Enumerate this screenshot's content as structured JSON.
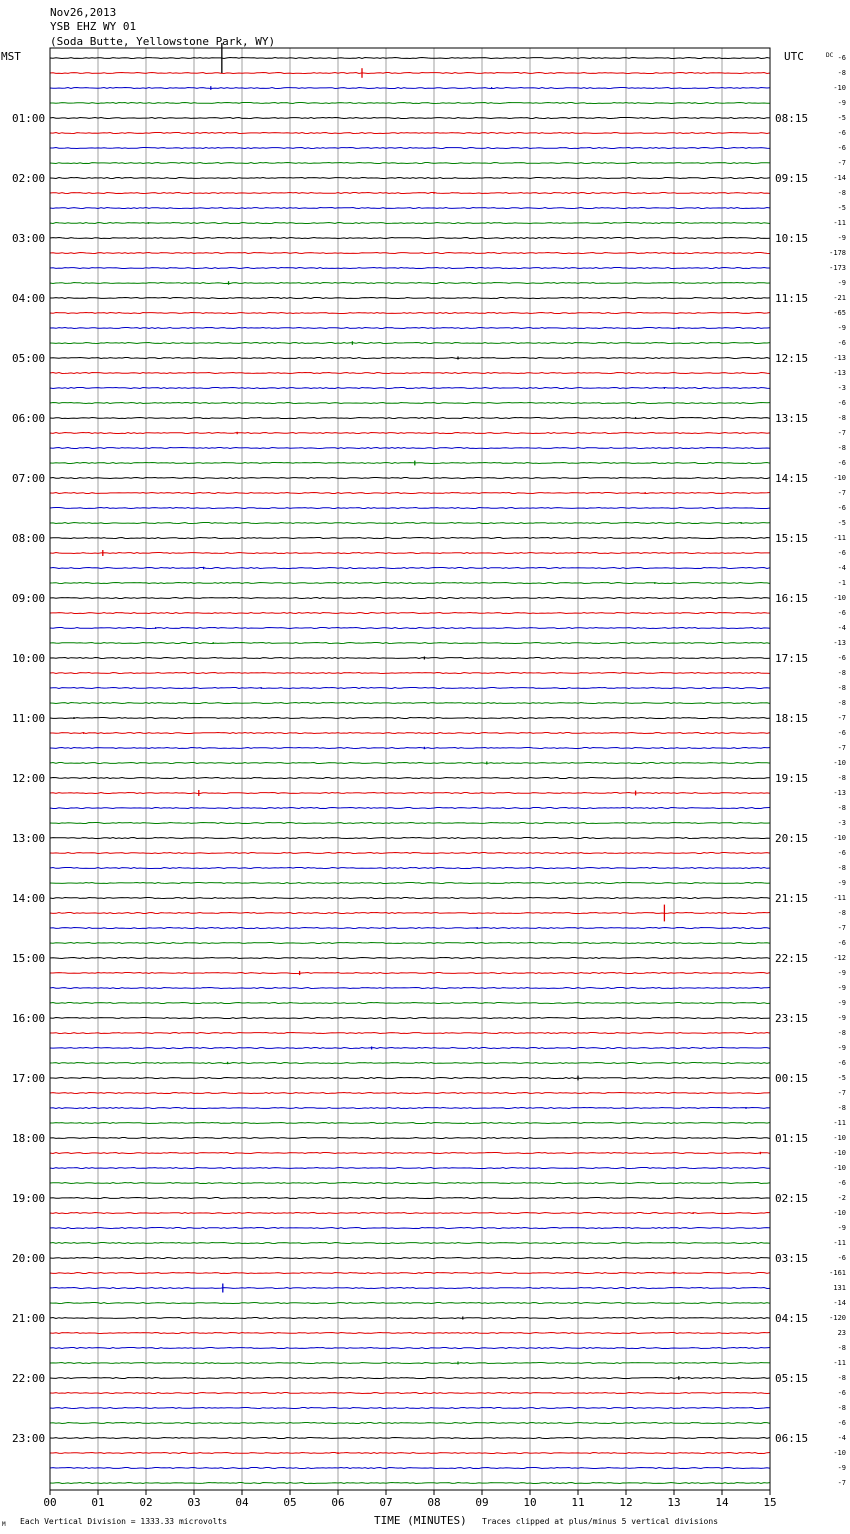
{
  "header": {
    "line1": "Nov26,2013",
    "line2": "YSB EHZ WY 01",
    "line3": "(Soda Butte, Yellowstone Park, WY)"
  },
  "left_axis_label": "MST",
  "right_axis_label": "UTC",
  "dc_label": "DC",
  "footer": {
    "left_note": "Each Vertical Division = 1333.33 microvolts",
    "corner_mark": "M",
    "axis_title": "TIME (MINUTES)",
    "right_note": "Traces clipped at plus/minus 5 vertical divisions"
  },
  "colors": {
    "trace_cycle": [
      "#000000",
      "#e00000",
      "#0000c8",
      "#008000"
    ],
    "grid": "#a0a0a0",
    "frame": "#000000"
  },
  "chart_data": {
    "type": "line",
    "title": "",
    "xlabel": "TIME (MINUTES)",
    "xlim": [
      0,
      15
    ],
    "x_ticks": [
      "00",
      "01",
      "02",
      "03",
      "04",
      "05",
      "06",
      "07",
      "08",
      "09",
      "10",
      "11",
      "12",
      "13",
      "14",
      "15"
    ],
    "traces_per_hour": 4,
    "total_traces": 96,
    "left_hour_labels": [
      "01:00",
      "02:00",
      "03:00",
      "04:00",
      "05:00",
      "06:00",
      "07:00",
      "08:00",
      "09:00",
      "10:00",
      "11:00",
      "12:00",
      "13:00",
      "14:00",
      "15:00",
      "16:00",
      "17:00",
      "18:00",
      "19:00",
      "20:00",
      "21:00",
      "22:00",
      "23:00"
    ],
    "right_hour_labels": [
      "08:15",
      "09:15",
      "10:15",
      "11:15",
      "12:15",
      "13:15",
      "14:15",
      "15:15",
      "16:15",
      "17:15",
      "18:15",
      "19:15",
      "20:15",
      "21:15",
      "22:15",
      "23:15",
      "00:15",
      "01:15",
      "02:15",
      "03:15",
      "04:15",
      "05:15",
      "06:15"
    ],
    "dc_offsets": [
      "-6",
      "-8",
      "-10",
      "-9",
      "-5",
      "-6",
      "-6",
      "-7",
      "-14",
      "-8",
      "-5",
      "-11",
      "-9",
      "-178",
      "-173",
      "-9",
      "-21",
      "-65",
      "-9",
      "-6",
      "-13",
      "-13",
      "-3",
      "-6",
      "-8",
      "-7",
      "-8",
      "-6",
      "-10",
      "-7",
      "-6",
      "-5",
      "-11",
      "-6",
      "-4",
      "-1",
      "-10",
      "-6",
      "-4",
      "-13",
      "-6",
      "-8",
      "-8",
      "-8",
      "-7",
      "-6",
      "-7",
      "-10",
      "-8",
      "-13",
      "-8",
      "-3",
      "-10",
      "-6",
      "-8",
      "-9",
      "-11",
      "-8",
      "-7",
      "-6",
      "-12",
      "-9",
      "-9",
      "-9",
      "-9",
      "-8",
      "-9",
      "-6",
      "-5",
      "-7",
      "-8",
      "-11",
      "-10",
      "-10",
      "-10",
      "-6",
      "-2",
      "-10",
      "-9",
      "-11",
      "-6",
      "-161",
      "131",
      "-14",
      "-120",
      "23",
      "-8",
      "-11",
      "-8",
      "-6",
      "-8",
      "-6",
      "-4",
      "-10",
      "-9",
      "-7"
    ],
    "events": [
      {
        "trace": 0,
        "t": 3.58,
        "amp": 5
      },
      {
        "trace": 1,
        "t": 6.5,
        "amp": 1.6
      },
      {
        "trace": 2,
        "t": 3.35,
        "amp": 0.6
      },
      {
        "trace": 2,
        "t": 9.2,
        "amp": 0.3
      },
      {
        "trace": 9,
        "t": 8.0,
        "amp": 0.3
      },
      {
        "trace": 11,
        "t": 2.05,
        "amp": 0.3
      },
      {
        "trace": 12,
        "t": 4.6,
        "amp": 0.3
      },
      {
        "trace": 13,
        "t": 13.0,
        "amp": 0.3
      },
      {
        "trace": 15,
        "t": 3.72,
        "amp": 0.6
      },
      {
        "trace": 18,
        "t": 13.1,
        "amp": 0.3
      },
      {
        "trace": 19,
        "t": 6.3,
        "amp": 0.6
      },
      {
        "trace": 20,
        "t": 8.5,
        "amp": 0.5
      },
      {
        "trace": 22,
        "t": 12.8,
        "amp": 0.3
      },
      {
        "trace": 24,
        "t": 12.2,
        "amp": 0.3
      },
      {
        "trace": 25,
        "t": 3.9,
        "amp": 0.4
      },
      {
        "trace": 27,
        "t": 7.6,
        "amp": 0.8
      },
      {
        "trace": 29,
        "t": 12.4,
        "amp": 0.3
      },
      {
        "trace": 31,
        "t": 14.4,
        "amp": 0.3
      },
      {
        "trace": 33,
        "t": 1.1,
        "amp": 1.0
      },
      {
        "trace": 34,
        "t": 3.2,
        "amp": 0.4
      },
      {
        "trace": 35,
        "t": 12.6,
        "amp": 0.3
      },
      {
        "trace": 38,
        "t": 2.2,
        "amp": 0.3
      },
      {
        "trace": 39,
        "t": 3.4,
        "amp": 0.3
      },
      {
        "trace": 40,
        "t": 7.8,
        "amp": 0.5
      },
      {
        "trace": 42,
        "t": 4.4,
        "amp": 0.3
      },
      {
        "trace": 44,
        "t": 0.5,
        "amp": 0.3
      },
      {
        "trace": 45,
        "t": 0.7,
        "amp": 0.3
      },
      {
        "trace": 46,
        "t": 7.8,
        "amp": 0.4
      },
      {
        "trace": 47,
        "t": 9.1,
        "amp": 0.5
      },
      {
        "trace": 49,
        "t": 3.1,
        "amp": 1.0
      },
      {
        "trace": 49,
        "t": 12.2,
        "amp": 0.8
      },
      {
        "trace": 57,
        "t": 12.8,
        "amp": 2.8
      },
      {
        "trace": 58,
        "t": 8.9,
        "amp": 0.3
      },
      {
        "trace": 61,
        "t": 5.2,
        "amp": 0.7
      },
      {
        "trace": 66,
        "t": 6.7,
        "amp": 0.5
      },
      {
        "trace": 67,
        "t": 3.7,
        "amp": 0.4
      },
      {
        "trace": 68,
        "t": 11.0,
        "amp": 0.8
      },
      {
        "trace": 70,
        "t": 14.5,
        "amp": 0.3
      },
      {
        "trace": 73,
        "t": 14.8,
        "amp": 0.4
      },
      {
        "trace": 77,
        "t": 13.4,
        "amp": 0.3
      },
      {
        "trace": 81,
        "t": 13.0,
        "amp": 0.4
      },
      {
        "trace": 82,
        "t": 3.6,
        "amp": 1.5
      },
      {
        "trace": 84,
        "t": 8.6,
        "amp": 0.5
      },
      {
        "trace": 87,
        "t": 8.5,
        "amp": 0.5
      },
      {
        "trace": 88,
        "t": 13.1,
        "amp": 0.6
      },
      {
        "trace": 93,
        "t": 6.0,
        "amp": 0.3
      }
    ]
  }
}
